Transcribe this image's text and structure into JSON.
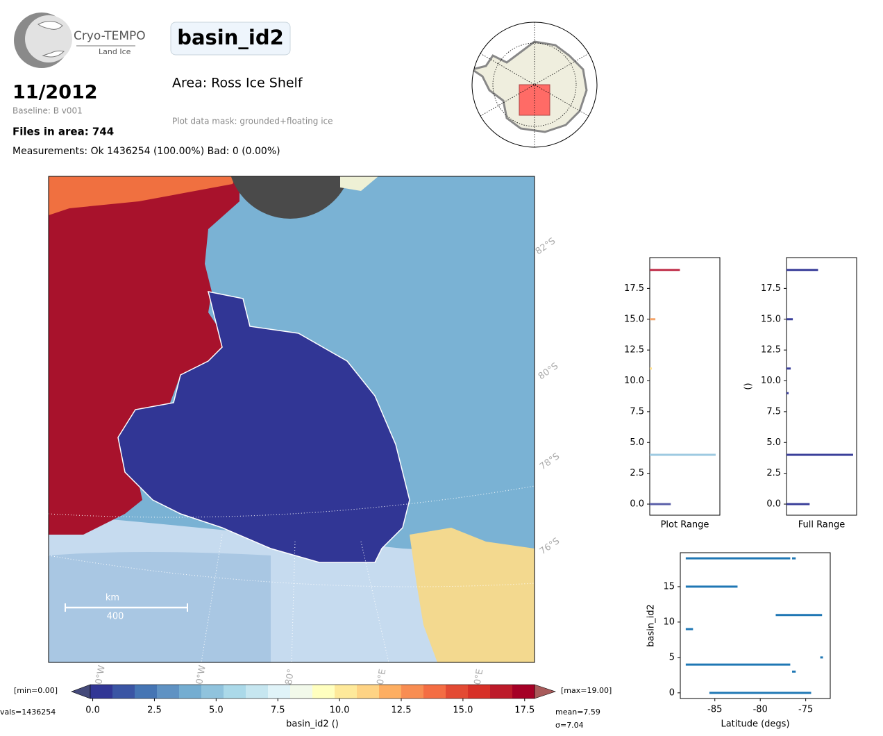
{
  "header": {
    "logo_title": "Cryo-TEMPO",
    "logo_subtitle": "Land Ice",
    "parameter": "basin_id2",
    "date": "11/2012",
    "baseline": "Baseline: B v001",
    "files": "Files in area: 744",
    "measurements": "Measurements: Ok 1436254 (100.00%) Bad: 0 (0.00%)",
    "area": "Area: Ross Ice Shelf",
    "mask": "Plot data mask: grounded+floating ice"
  },
  "map": {
    "lat_labels": [
      "82°S",
      "80°S",
      "78°S",
      "76°S"
    ],
    "lon_labels": [
      "0°W",
      "0°W",
      "80°",
      "0°E",
      "0°E"
    ],
    "scale_unit": "km",
    "scale_value": 400
  },
  "chart_data": [
    {
      "type": "colorbar",
      "xlabel": "basin_id2 ()",
      "xlim": [
        -0.1,
        17.9
      ],
      "xticks": [
        {
          "value": 0,
          "label": "0.0"
        },
        2.5,
        {
          "value": 5,
          "label": "5.0"
        },
        7.5,
        {
          "value": 10,
          "label": "10.0"
        },
        12.5,
        {
          "value": 15,
          "label": "15.0"
        },
        17.5
      ],
      "colors": [
        "#313695",
        "#3a55a4",
        "#4575b4",
        "#5f92c3",
        "#74add1",
        "#90c3dd",
        "#abd9e9",
        "#c6e6f0",
        "#e0f3f8",
        "#f2f9ea",
        "#ffffbf",
        "#fee99a",
        "#fed384",
        "#fdae61",
        "#f88d52",
        "#f46d43",
        "#e34a33",
        "#d73027",
        "#bd1a2a",
        "#a50026"
      ],
      "under_color": "#454a7a",
      "over_color": "#a85a5a",
      "min_label": "[min=0.00]",
      "max_label": "[max=19.00]",
      "count_label": "vals=1436254",
      "mean_label": "mean=7.59",
      "std_label": "σ=7.04"
    },
    {
      "type": "barh",
      "xlabel": "Plot Range",
      "y": [
        0,
        4,
        11,
        15,
        19
      ],
      "values": [
        30,
        94,
        3,
        8,
        43
      ],
      "colors": [
        "#5a5fa8",
        "#9ecae1",
        "#fee090",
        "#f4a56b",
        "#c0304a"
      ],
      "xlim": [
        0,
        100
      ],
      "ylim": [
        -0.9,
        20
      ],
      "yticks": [
        {
          "value": 0,
          "label": "0.0"
        },
        2.5,
        {
          "value": 5,
          "label": "5.0"
        },
        7.5,
        {
          "value": 10,
          "label": "10.0"
        },
        12.5,
        {
          "value": 15,
          "label": "15.0"
        },
        17.5
      ]
    },
    {
      "type": "barh",
      "xlabel": "Full Range",
      "ylabel": "()",
      "y": [
        0,
        4,
        9,
        11,
        15,
        19
      ],
      "values": [
        33,
        95,
        3,
        6,
        9,
        45
      ],
      "color": "#3a3f9a",
      "xlim": [
        0,
        100
      ],
      "ylim": [
        -0.9,
        20
      ],
      "yticks": [
        {
          "value": 0,
          "label": "0.0"
        },
        2.5,
        {
          "value": 5,
          "label": "5.0"
        },
        7.5,
        {
          "value": 10,
          "label": "10.0"
        },
        12.5,
        {
          "value": 15,
          "label": "15.0"
        },
        17.5
      ]
    },
    {
      "type": "segments",
      "xlabel": "Latitude (degs)",
      "ylabel": "basin_id2",
      "color": "#1f77b4",
      "y": [
        19,
        19,
        15,
        11,
        9,
        5,
        4,
        3,
        0
      ],
      "x_start": [
        -88.2,
        -76.5,
        -88.2,
        -78.3,
        -88.2,
        -73.4,
        -88.2,
        -76.5,
        -85.6
      ],
      "x_end": [
        -76.7,
        -76.1,
        -82.5,
        -73.2,
        -87.4,
        -73.1,
        -76.7,
        -76.1,
        -74.4
      ],
      "xlim": [
        -88.8,
        -72.3
      ],
      "ylim": [
        -0.8,
        19.8
      ],
      "xticks": [
        -85,
        -80,
        -75
      ],
      "yticks": [
        0,
        5,
        10,
        15
      ]
    }
  ]
}
